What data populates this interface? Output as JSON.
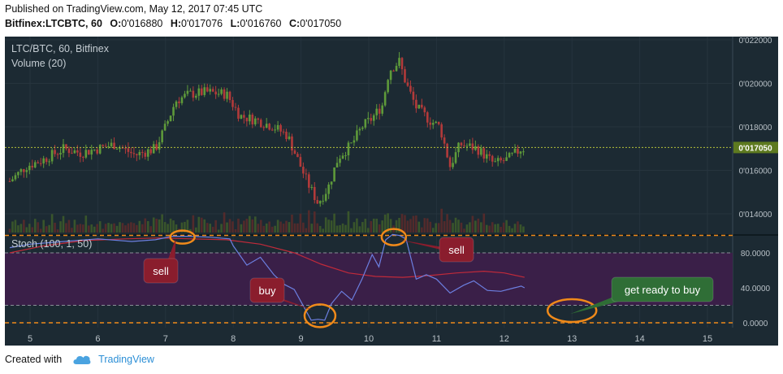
{
  "header": {
    "published": "Published on TradingView.com, May 12, 2017 07:45 UTC",
    "symbol": "Bitfinex:LTCBTC, 60",
    "open_label": "O:",
    "open": "0'016880",
    "high_label": "H:",
    "high": "0'017076",
    "low_label": "L:",
    "low": "0'016760",
    "close_label": "C:",
    "close": "0'017050"
  },
  "footer": {
    "created_with": "Created with",
    "brand": "TradingView"
  },
  "colors": {
    "background": "#1c2a33",
    "up_candle": "#5e9a3a",
    "down_candle": "#b23a3a",
    "stoch_k": "#6c7fe0",
    "stoch_d": "#c02a3a",
    "stoch_band": "#3a1f48",
    "annotation_orange": "#f08a1a",
    "annotation_red_box": "#8a1d2d",
    "annotation_green_box": "#2f6e36"
  },
  "chart_data": {
    "type": "candlestick",
    "title": "LTC/BTC, 60, Bitfinex",
    "volume_label": "Volume (20)",
    "stoch_label": "Stoch (100, 1, 50)",
    "x_ticks": [
      "5",
      "6",
      "7",
      "8",
      "9",
      "10",
      "11",
      "12",
      "13",
      "14",
      "15"
    ],
    "price_ticks": [
      "0'014000",
      "0'016000",
      "0'018000",
      "0'020000",
      "0'022000"
    ],
    "price_ylim": [
      0.0131,
      0.0224
    ],
    "stoch_ticks": [
      "0.0000",
      "40.0000",
      "80.0000"
    ],
    "stoch_ylim": [
      -6,
      113
    ],
    "last_price": "0'017050",
    "stoch_levels": [
      0,
      20,
      80,
      100
    ],
    "price_path": [
      [
        4.7,
        0.0155
      ],
      [
        4.95,
        0.0162
      ],
      [
        5.2,
        0.0165
      ],
      [
        5.5,
        0.017
      ],
      [
        5.75,
        0.0168
      ],
      [
        6.0,
        0.017
      ],
      [
        6.25,
        0.0172
      ],
      [
        6.55,
        0.0167
      ],
      [
        6.85,
        0.017
      ],
      [
        7.0,
        0.018
      ],
      [
        7.15,
        0.0192
      ],
      [
        7.35,
        0.0195
      ],
      [
        7.6,
        0.0196
      ],
      [
        7.9,
        0.0195
      ],
      [
        8.1,
        0.0185
      ],
      [
        8.35,
        0.0183
      ],
      [
        8.6,
        0.018
      ],
      [
        8.8,
        0.0176
      ],
      [
        8.95,
        0.0165
      ],
      [
        9.1,
        0.0154
      ],
      [
        9.25,
        0.0145
      ],
      [
        9.4,
        0.0152
      ],
      [
        9.55,
        0.0166
      ],
      [
        9.75,
        0.0172
      ],
      [
        9.9,
        0.018
      ],
      [
        10.05,
        0.0184
      ],
      [
        10.2,
        0.019
      ],
      [
        10.3,
        0.0206
      ],
      [
        10.45,
        0.021
      ],
      [
        10.55,
        0.02
      ],
      [
        10.7,
        0.0189
      ],
      [
        10.9,
        0.0183
      ],
      [
        11.05,
        0.018
      ],
      [
        11.2,
        0.0162
      ],
      [
        11.35,
        0.0172
      ],
      [
        11.6,
        0.017
      ],
      [
        11.85,
        0.0163
      ],
      [
        12.05,
        0.0165
      ],
      [
        12.25,
        0.017
      ],
      [
        12.35,
        0.017
      ]
    ],
    "stoch_k": [
      [
        4.7,
        86
      ],
      [
        5.0,
        90
      ],
      [
        5.5,
        93
      ],
      [
        6.0,
        96
      ],
      [
        6.5,
        93
      ],
      [
        6.85,
        95
      ],
      [
        7.1,
        99
      ],
      [
        7.35,
        99
      ],
      [
        7.65,
        98
      ],
      [
        7.95,
        96
      ],
      [
        8.0,
        88
      ],
      [
        8.2,
        66
      ],
      [
        8.4,
        75
      ],
      [
        8.6,
        55
      ],
      [
        8.75,
        44
      ],
      [
        8.9,
        38
      ],
      [
        9.05,
        17
      ],
      [
        9.15,
        3
      ],
      [
        9.25,
        4
      ],
      [
        9.35,
        3
      ],
      [
        9.45,
        22
      ],
      [
        9.6,
        36
      ],
      [
        9.75,
        26
      ],
      [
        9.9,
        50
      ],
      [
        10.05,
        78
      ],
      [
        10.15,
        64
      ],
      [
        10.25,
        95
      ],
      [
        10.35,
        101
      ],
      [
        10.45,
        100
      ],
      [
        10.55,
        96
      ],
      [
        10.7,
        50
      ],
      [
        10.85,
        55
      ],
      [
        11.0,
        50
      ],
      [
        11.2,
        34
      ],
      [
        11.4,
        43
      ],
      [
        11.55,
        48
      ],
      [
        11.75,
        37
      ],
      [
        11.95,
        36
      ],
      [
        12.15,
        40
      ],
      [
        12.25,
        42
      ],
      [
        12.3,
        40
      ]
    ],
    "stoch_d": [
      [
        4.7,
        80
      ],
      [
        5.2,
        88
      ],
      [
        5.8,
        94
      ],
      [
        6.4,
        96
      ],
      [
        6.9,
        97
      ],
      [
        7.4,
        96
      ],
      [
        7.9,
        95
      ],
      [
        8.4,
        90
      ],
      [
        8.9,
        80
      ],
      [
        9.3,
        67
      ],
      [
        9.7,
        57
      ],
      [
        10.1,
        53
      ],
      [
        10.5,
        52
      ],
      [
        10.9,
        54
      ],
      [
        11.3,
        57
      ],
      [
        11.7,
        59
      ],
      [
        12.0,
        57
      ],
      [
        12.3,
        52
      ]
    ]
  },
  "annotations": {
    "sell_left": "sell",
    "buy": "buy",
    "sell_right": "sell",
    "get_ready": "get ready to buy"
  }
}
